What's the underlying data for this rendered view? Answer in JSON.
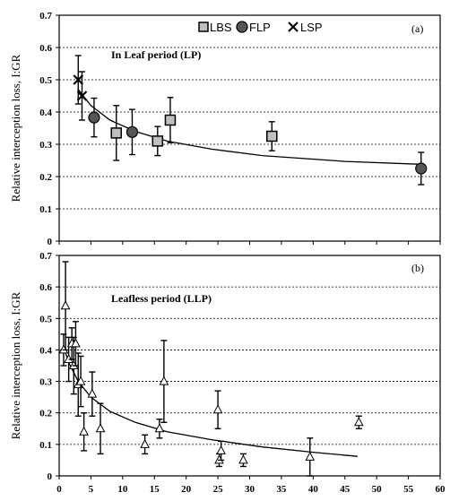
{
  "chart_data": [
    {
      "type": "scatter",
      "panel_label": "(a)",
      "annotation": "In Leaf period (LP)",
      "ylabel": "Relative interception loss, I:GR",
      "xlim": [
        0,
        60
      ],
      "ylim": [
        0,
        0.7
      ],
      "yticks": [
        "0",
        "0.1",
        "0.2",
        "0.3",
        "0.4",
        "0.5",
        "0.6",
        "0.7"
      ],
      "grid": "horizontal-dashed",
      "legend_position": "top",
      "series": [
        {
          "name": "LBS",
          "marker": "square",
          "color": "#bfbfbf",
          "points": [
            {
              "x": 9.0,
              "y": 0.335,
              "err": 0.085
            },
            {
              "x": 15.5,
              "y": 0.31,
              "err": 0.045
            },
            {
              "x": 17.5,
              "y": 0.375,
              "err": 0.07
            },
            {
              "x": 33.5,
              "y": 0.325,
              "err": 0.045
            }
          ]
        },
        {
          "name": "FLP",
          "marker": "circle",
          "color": "#555555",
          "points": [
            {
              "x": 5.5,
              "y": 0.383,
              "err": 0.06
            },
            {
              "x": 11.5,
              "y": 0.338,
              "err": 0.07
            },
            {
              "x": 57.0,
              "y": 0.225,
              "err": 0.05
            }
          ]
        },
        {
          "name": "LSP",
          "marker": "x",
          "color": "#000000",
          "points": [
            {
              "x": 3.0,
              "y": 0.5,
              "err": 0.075
            },
            {
              "x": 3.6,
              "y": 0.45,
              "err": 0.075
            }
          ]
        }
      ],
      "fit": [
        {
          "x": 3,
          "y": 0.47
        },
        {
          "x": 5,
          "y": 0.42
        },
        {
          "x": 8,
          "y": 0.375
        },
        {
          "x": 12,
          "y": 0.34
        },
        {
          "x": 17,
          "y": 0.31
        },
        {
          "x": 24,
          "y": 0.285
        },
        {
          "x": 32,
          "y": 0.265
        },
        {
          "x": 45,
          "y": 0.247
        },
        {
          "x": 57,
          "y": 0.238
        }
      ]
    },
    {
      "type": "scatter",
      "panel_label": "(b)",
      "annotation": "Leafless period (LLP)",
      "ylabel": "Relative interception loss, I:GR",
      "xlim": [
        0,
        60
      ],
      "ylim": [
        0,
        0.7
      ],
      "yticks": [
        "0",
        "0.1",
        "0.2",
        "0.3",
        "0.4",
        "0.5",
        "0.6",
        "0.7"
      ],
      "xticks": [
        "0",
        "5",
        "10",
        "15",
        "20",
        "25",
        "30",
        "35",
        "40",
        "45",
        "50",
        "55",
        "60"
      ],
      "grid": "horizontal-dashed",
      "series": [
        {
          "marker": "triangle-open",
          "color": "#000000",
          "points": [
            {
              "x": 0.7,
              "y": 0.4,
              "err": 0.05
            },
            {
              "x": 1.0,
              "y": 0.54,
              "err": 0.14
            },
            {
              "x": 1.5,
              "y": 0.37,
              "err": 0.07
            },
            {
              "x": 2.0,
              "y": 0.42,
              "err": 0.05
            },
            {
              "x": 2.3,
              "y": 0.35,
              "err": 0.09
            },
            {
              "x": 2.6,
              "y": 0.42,
              "err": 0.07
            },
            {
              "x": 3.0,
              "y": 0.29,
              "err": 0.1
            },
            {
              "x": 3.4,
              "y": 0.3,
              "err": 0.08
            },
            {
              "x": 3.9,
              "y": 0.14,
              "err": 0.06
            },
            {
              "x": 5.2,
              "y": 0.26,
              "err": 0.07
            },
            {
              "x": 6.5,
              "y": 0.15,
              "err": 0.08
            },
            {
              "x": 13.5,
              "y": 0.1,
              "err": 0.03
            },
            {
              "x": 15.8,
              "y": 0.15,
              "err": 0.03
            },
            {
              "x": 16.5,
              "y": 0.3,
              "err": 0.13
            },
            {
              "x": 25.0,
              "y": 0.21,
              "err": 0.06
            },
            {
              "x": 25.2,
              "y": 0.05,
              "err": 0.02
            },
            {
              "x": 25.5,
              "y": 0.08,
              "err": 0.03
            },
            {
              "x": 29.0,
              "y": 0.05,
              "err": 0.02
            },
            {
              "x": 39.5,
              "y": 0.06,
              "err": 0.06
            },
            {
              "x": 47.2,
              "y": 0.17,
              "err": 0.02
            }
          ]
        }
      ],
      "fit": [
        {
          "x": 0.7,
          "y": 0.41
        },
        {
          "x": 1.5,
          "y": 0.36
        },
        {
          "x": 3,
          "y": 0.3
        },
        {
          "x": 5,
          "y": 0.25
        },
        {
          "x": 8,
          "y": 0.205
        },
        {
          "x": 12,
          "y": 0.17
        },
        {
          "x": 17,
          "y": 0.14
        },
        {
          "x": 24,
          "y": 0.115
        },
        {
          "x": 32,
          "y": 0.092
        },
        {
          "x": 40,
          "y": 0.075
        },
        {
          "x": 47,
          "y": 0.062
        }
      ]
    }
  ]
}
